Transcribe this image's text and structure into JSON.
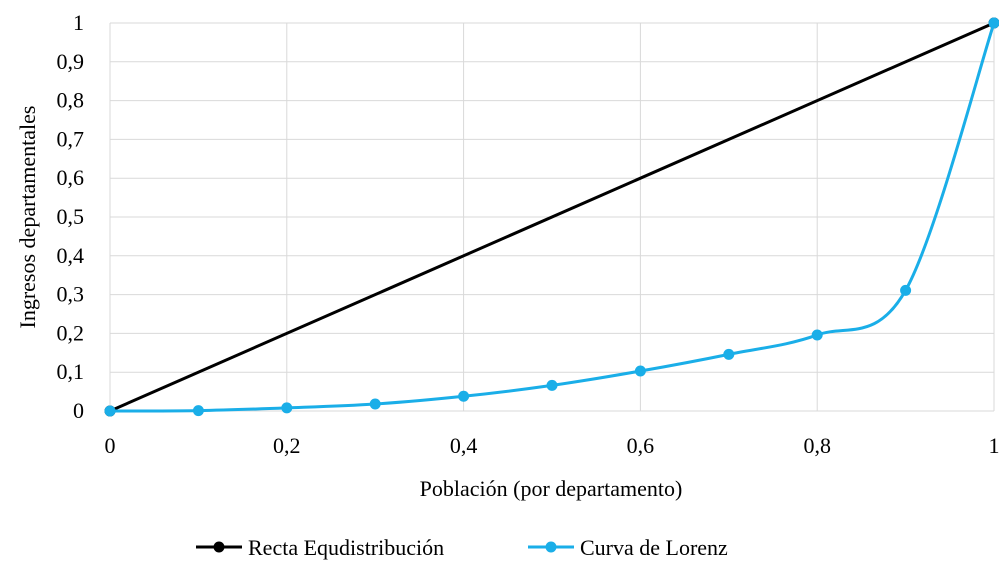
{
  "chart_data": {
    "type": "line",
    "xlabel": "Población  (por departamento)",
    "ylabel": "Ingresos  departamentales",
    "xlim": [
      0,
      1
    ],
    "ylim": [
      0,
      1
    ],
    "x_ticks": [
      "0",
      "0,2",
      "0,4",
      "0,6",
      "0,8",
      "1"
    ],
    "y_ticks": [
      "0",
      "0,1",
      "0,2",
      "0,3",
      "0,4",
      "0,5",
      "0,6",
      "0,7",
      "0,8",
      "0,9",
      "1"
    ],
    "grid": true,
    "legend_position": "bottom",
    "series": [
      {
        "name": "Recta Equdistribución",
        "color": "#000000",
        "smooth": false,
        "x": [
          0,
          1
        ],
        "y": [
          0,
          1
        ]
      },
      {
        "name": "Curva de Lorenz",
        "color": "#1aaee8",
        "smooth": true,
        "x": [
          0,
          0.1,
          0.2,
          0.3,
          0.4,
          0.5,
          0.6,
          0.7,
          0.8,
          0.9,
          1
        ],
        "y": [
          0,
          0.001,
          0.008,
          0.018,
          0.038,
          0.066,
          0.103,
          0.146,
          0.196,
          0.311,
          1
        ]
      }
    ]
  }
}
